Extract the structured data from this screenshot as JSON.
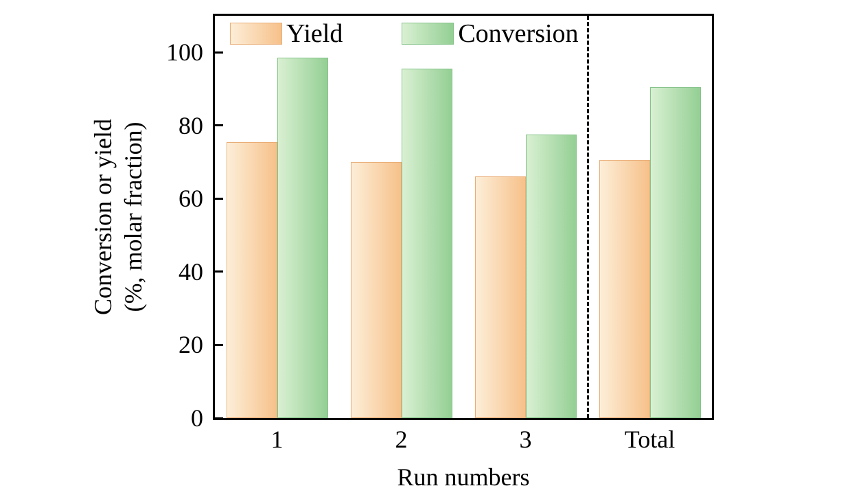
{
  "chart_data": {
    "type": "bar",
    "title": "",
    "xlabel": "Run numbers",
    "ylabel": "Conversion or yield (%, molar fraction)",
    "ylabel_line1": "Conversion or yield",
    "ylabel_line2": "(%, molar fraction)",
    "categories": [
      "1",
      "2",
      "3",
      "Total"
    ],
    "series": [
      {
        "name": "Yield",
        "values": [
          75.5,
          70,
          66,
          70.5
        ],
        "fill_light": "#fdeed8",
        "fill_dark": "#f6c18a",
        "border_color": "#e9ad77"
      },
      {
        "name": "Conversion",
        "values": [
          98.5,
          95.5,
          77.5,
          90.5
        ],
        "fill_light": "#d9f0d2",
        "fill_dark": "#94cf94",
        "border_color": "#85c389"
      }
    ],
    "ylim": [
      0,
      110
    ],
    "yticks": [
      0,
      20,
      40,
      60,
      80,
      100
    ],
    "grid": false,
    "legend_position": "top-inside",
    "separator": {
      "style": "dashed",
      "after_category": "3"
    }
  },
  "colors": {
    "axis": "#000000",
    "background": "#ffffff"
  }
}
